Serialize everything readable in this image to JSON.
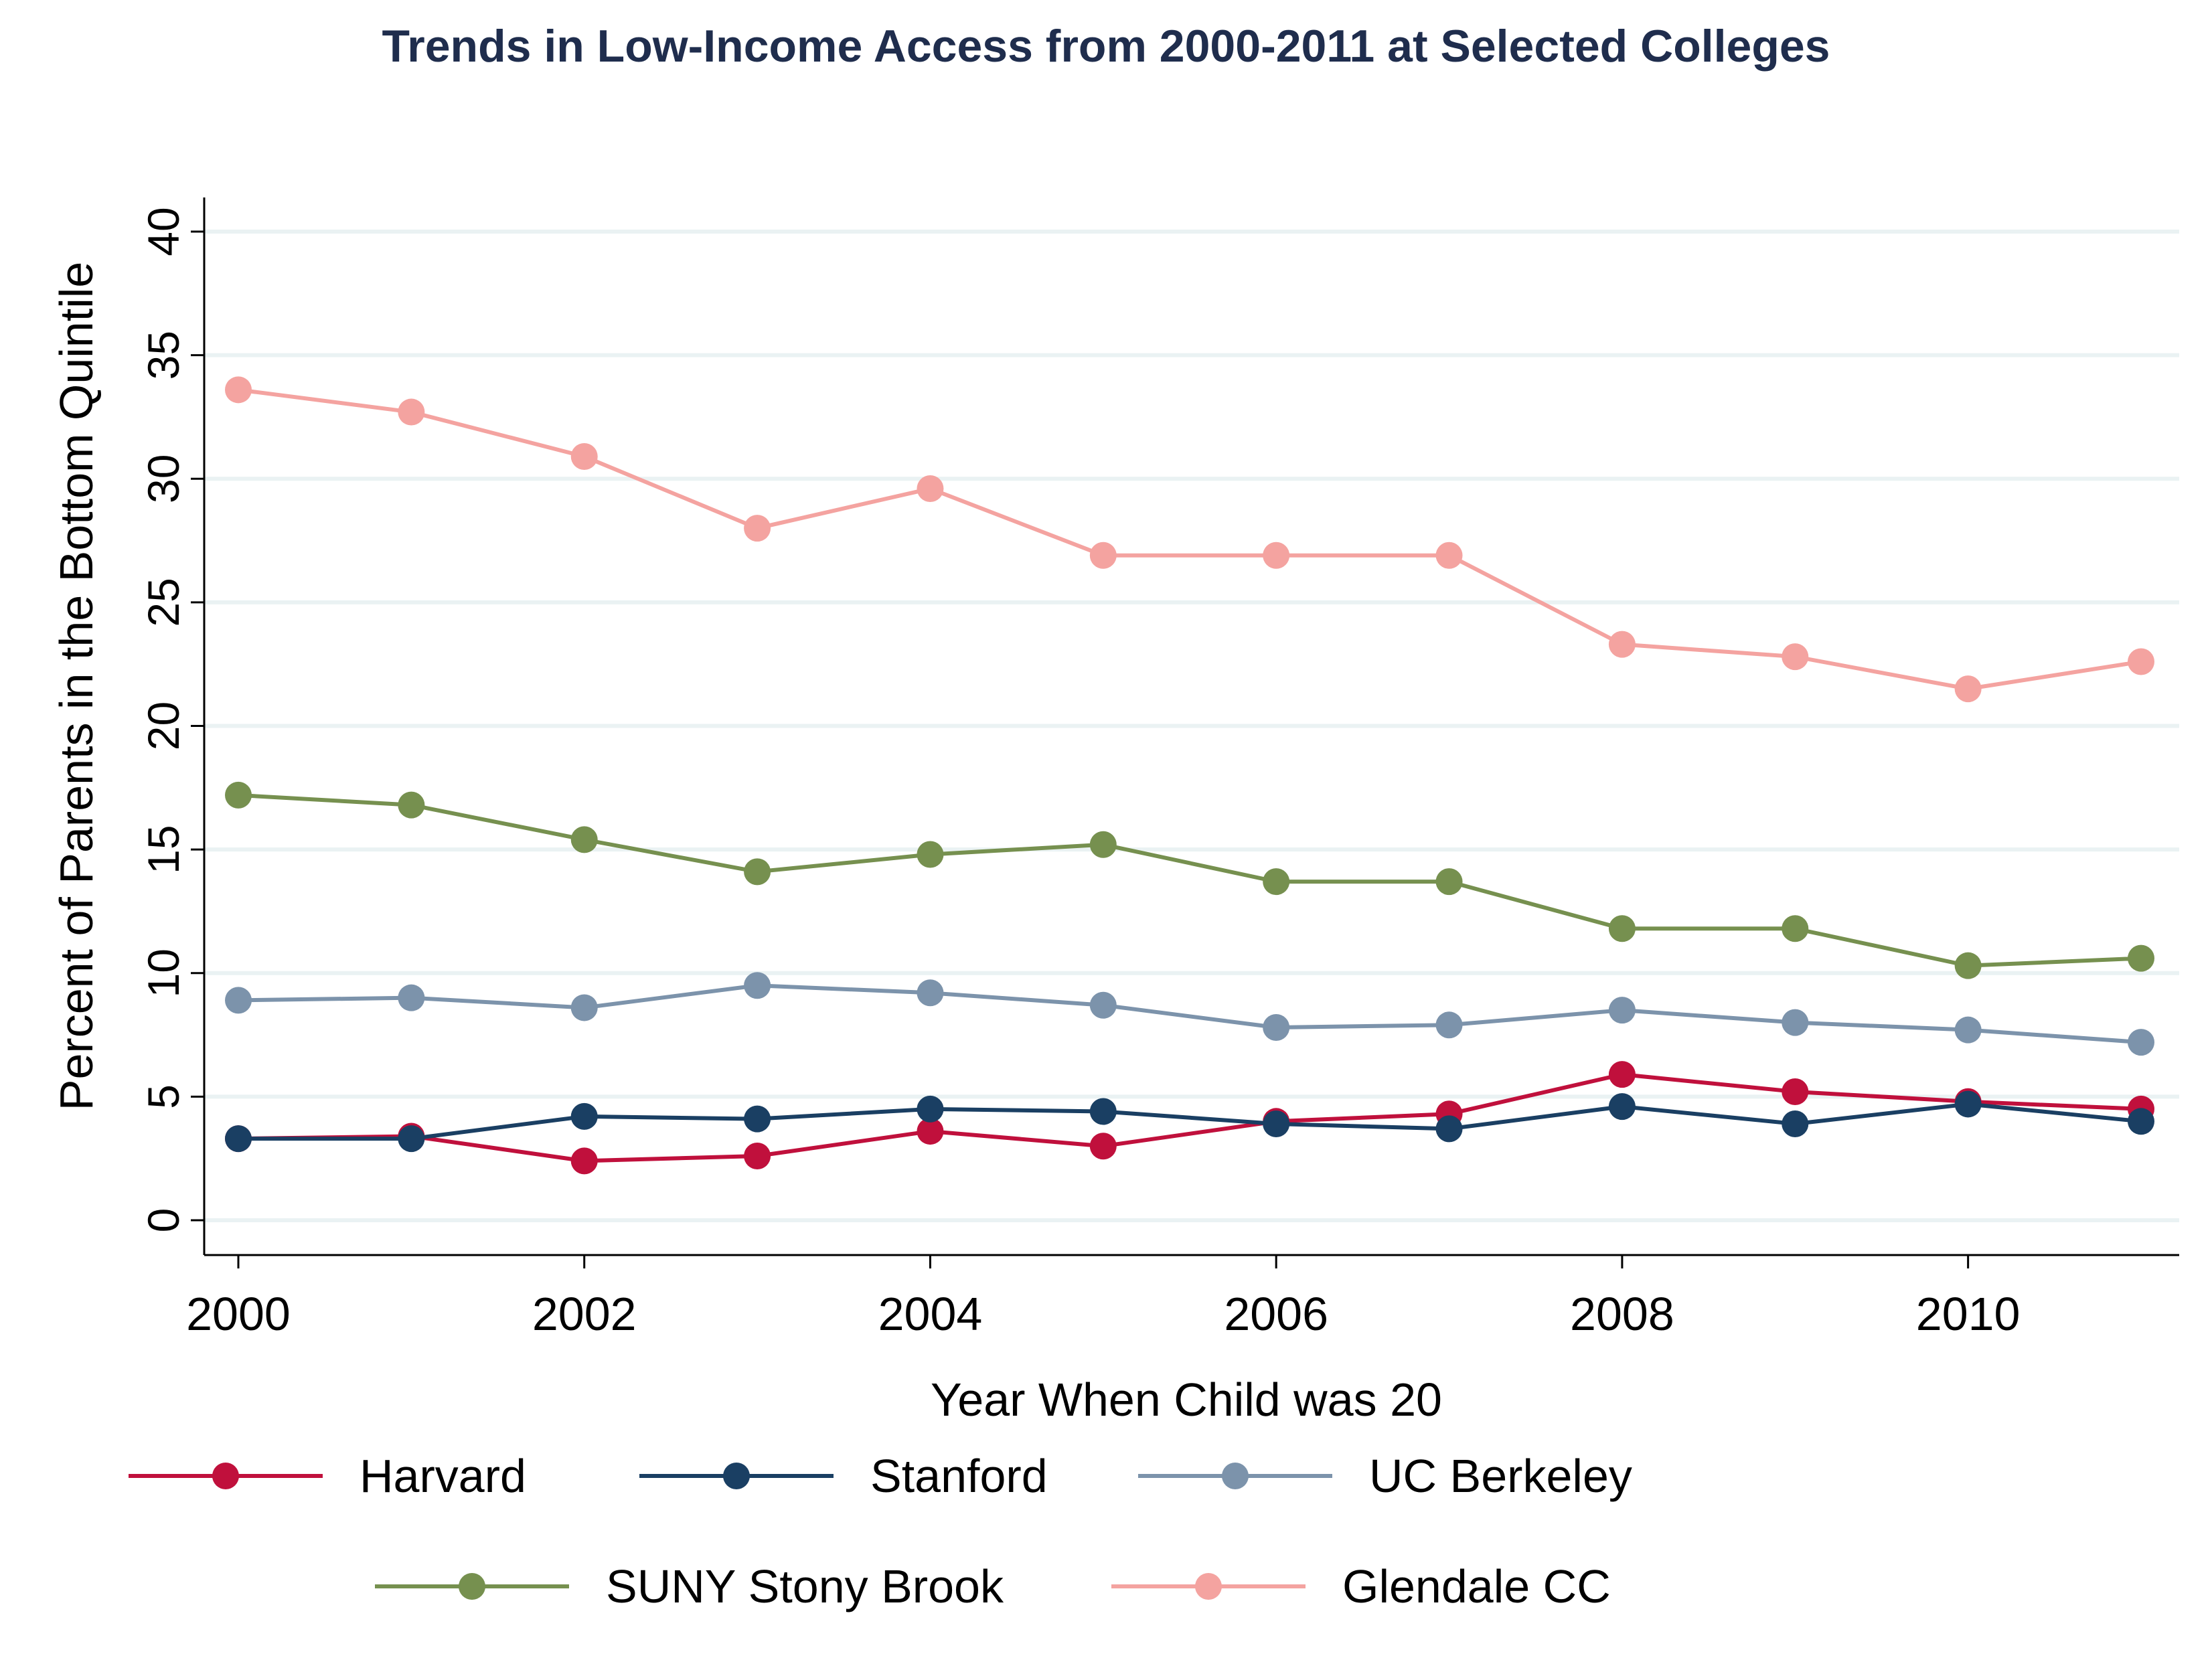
{
  "chart_data": {
    "type": "line",
    "title": "Trends in Low-Income Access from 2000-2011 at Selected Colleges",
    "xlabel": "Year When Child was 20",
    "ylabel": "Percent of Parents in the Bottom Quintile",
    "x": [
      2000,
      2001,
      2002,
      2003,
      2004,
      2005,
      2006,
      2007,
      2008,
      2009,
      2010,
      2011
    ],
    "xlim": [
      2000,
      2011
    ],
    "ylim": [
      0,
      40
    ],
    "x_ticks": [
      "2000",
      "2002",
      "2004",
      "2006",
      "2008",
      "2010"
    ],
    "y_ticks": [
      "0",
      "5",
      "10",
      "15",
      "20",
      "25",
      "30",
      "35",
      "40"
    ],
    "grid": true,
    "legend_position": "bottom",
    "series": [
      {
        "name": "Harvard",
        "color": "#c0103c",
        "values": [
          3.3,
          3.4,
          2.4,
          2.6,
          3.6,
          3.0,
          4.0,
          4.3,
          5.9,
          5.2,
          4.8,
          4.5
        ]
      },
      {
        "name": "Stanford",
        "color": "#1a3f63",
        "values": [
          3.3,
          3.3,
          4.2,
          4.1,
          4.5,
          4.4,
          3.9,
          3.7,
          4.6,
          3.9,
          4.7,
          4.0
        ]
      },
      {
        "name": "UC Berkeley",
        "color": "#7c93ab",
        "values": [
          8.9,
          9.0,
          8.6,
          9.5,
          9.2,
          8.7,
          7.8,
          7.9,
          8.5,
          8.0,
          7.7,
          7.2
        ]
      },
      {
        "name": "SUNY Stony Brook",
        "color": "#76904f",
        "values": [
          17.2,
          16.8,
          15.4,
          14.1,
          14.8,
          15.2,
          13.7,
          13.7,
          11.8,
          11.8,
          10.3,
          10.6
        ]
      },
      {
        "name": "Glendale CC",
        "color": "#f4a3a0",
        "values": [
          33.6,
          32.7,
          30.9,
          28.0,
          29.6,
          26.9,
          26.9,
          26.9,
          23.3,
          22.8,
          21.5,
          22.6
        ]
      }
    ]
  }
}
